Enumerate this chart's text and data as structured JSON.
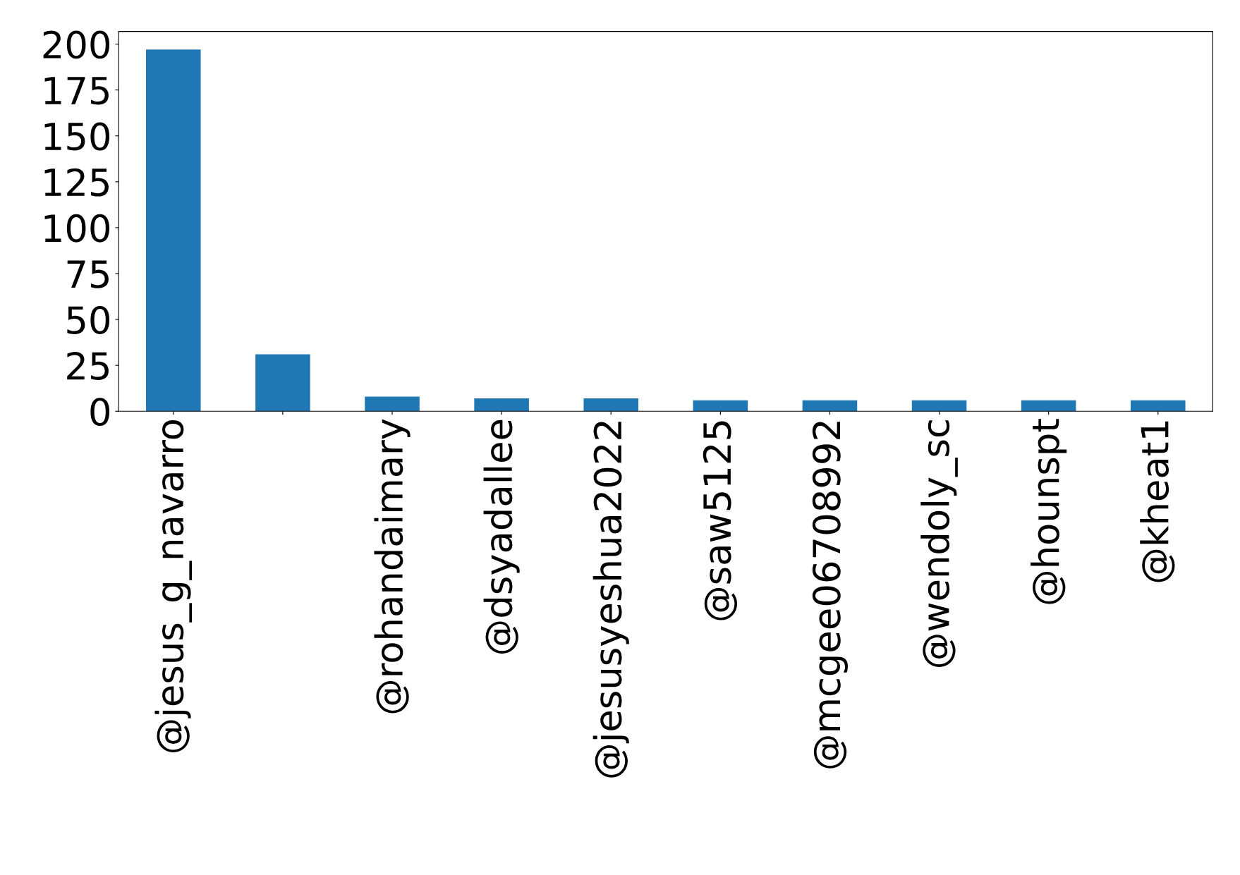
{
  "chart_data": {
    "type": "bar",
    "categories": [
      "@jesus_g_navarro",
      null,
      "@rohandaimary",
      "@dsyadallee",
      "@jesusyeshua2022",
      "@saw5125",
      "@mcgee06708992",
      "@wendoly_sc",
      "@hounspt",
      "@kheat1"
    ],
    "values": [
      197,
      31,
      8,
      7,
      7,
      6,
      6,
      6,
      6,
      6
    ],
    "color": "#1f77b4",
    "ylim": [
      0,
      206.85
    ],
    "yticks": [
      0,
      25,
      50,
      75,
      100,
      125,
      150,
      175,
      200
    ],
    "grid": false,
    "legend": false
  }
}
